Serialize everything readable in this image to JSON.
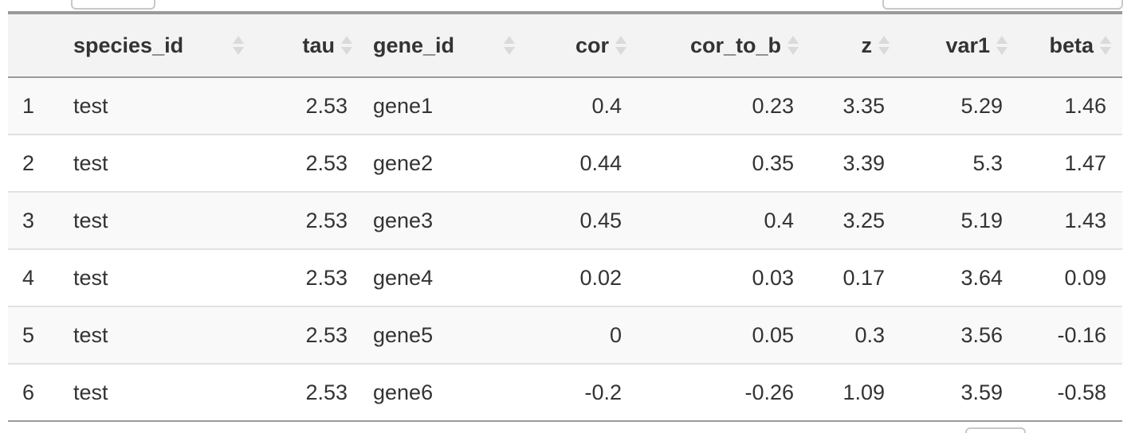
{
  "table": {
    "columns": [
      {
        "key": "idx",
        "label": "",
        "align": "idx",
        "sortable": false
      },
      {
        "key": "species_id",
        "label": "species_id",
        "align": "left",
        "sortable": true
      },
      {
        "key": "tau",
        "label": "tau",
        "align": "right",
        "sortable": true
      },
      {
        "key": "gene_id",
        "label": "gene_id",
        "align": "left",
        "sortable": true
      },
      {
        "key": "cor",
        "label": "cor",
        "align": "right",
        "sortable": true
      },
      {
        "key": "cor_to_b",
        "label": "cor_to_b",
        "align": "right",
        "sortable": true
      },
      {
        "key": "z",
        "label": "z",
        "align": "right",
        "sortable": true
      },
      {
        "key": "var1",
        "label": "var1",
        "align": "right",
        "sortable": true
      },
      {
        "key": "beta",
        "label": "beta",
        "align": "right",
        "sortable": true
      }
    ],
    "rows": [
      [
        "1",
        "test",
        "2.53",
        "gene1",
        "0.4",
        "0.23",
        "3.35",
        "5.29",
        "1.46"
      ],
      [
        "2",
        "test",
        "2.53",
        "gene2",
        "0.44",
        "0.35",
        "3.39",
        "5.3",
        "1.47"
      ],
      [
        "3",
        "test",
        "2.53",
        "gene3",
        "0.45",
        "0.4",
        "3.25",
        "5.19",
        "1.43"
      ],
      [
        "4",
        "test",
        "2.53",
        "gene4",
        "0.02",
        "0.03",
        "0.17",
        "3.64",
        "0.09"
      ],
      [
        "5",
        "test",
        "2.53",
        "gene5",
        "0",
        "0.05",
        "0.3",
        "3.56",
        "-0.16"
      ],
      [
        "6",
        "test",
        "2.53",
        "gene6",
        "-0.2",
        "-0.26",
        "1.09",
        "3.59",
        "-0.58"
      ]
    ]
  },
  "colors": {
    "header_bg": "#f3f3f3",
    "stripe": "#f9f9f9",
    "border": "#9a9a9a",
    "sort_icon": "#dadada"
  },
  "icons": {
    "sort": "sort-both-icon"
  }
}
